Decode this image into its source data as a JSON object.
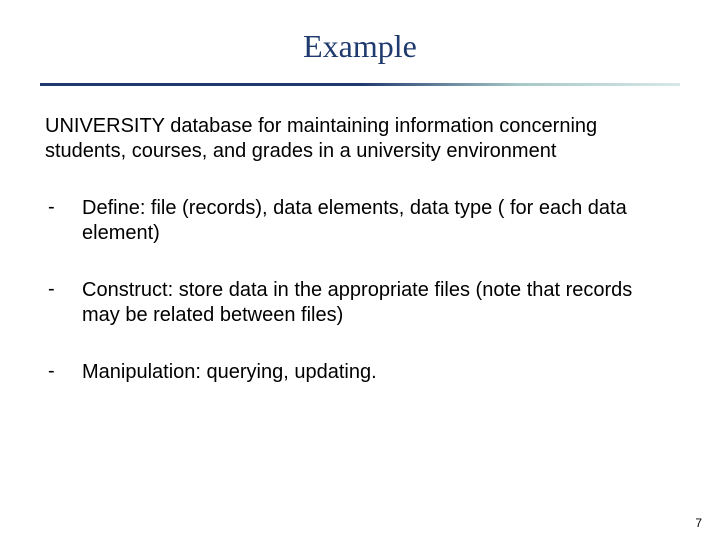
{
  "slide": {
    "title": "Example",
    "intro": "UNIVERSITY database for maintaining information concerning students, courses, and grades in a university environment",
    "bullets": [
      {
        "marker": "-",
        "text": "Define: file (records), data elements, data type ( for each data element)"
      },
      {
        "marker": "-",
        "text": "Construct: store data in the appropriate files (note that records may be related between files)"
      },
      {
        "marker": "-",
        "text": "Manipulation: querying, updating."
      }
    ],
    "pageNumber": "7"
  },
  "style": {
    "title_color": "#1f3a6e",
    "title_fontsize": 32,
    "title_font": "Georgia, serif",
    "body_fontsize": 20,
    "body_color": "#000000",
    "body_font": "Arial, sans-serif",
    "divider_start_color": "#1f3a6e",
    "divider_end_color": "#d8e8e8",
    "background_color": "#ffffff",
    "page_number_fontsize": 12
  }
}
